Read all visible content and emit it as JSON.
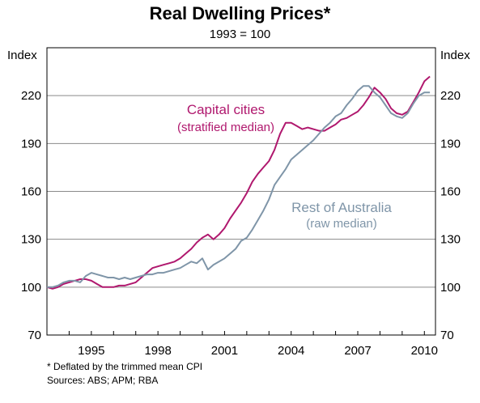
{
  "chart_data": {
    "type": "line",
    "title": "Real Dwelling Prices*",
    "subtitle": "1993 = 100",
    "ylabel_left": "Index",
    "ylabel_right": "Index",
    "xlim": [
      1993.0,
      2010.5
    ],
    "ylim": [
      70,
      250
    ],
    "yticks": [
      70,
      100,
      130,
      160,
      190,
      220
    ],
    "xticks": [
      1995,
      1998,
      2001,
      2004,
      2007,
      2010
    ],
    "grid": true,
    "series": [
      {
        "name": "Capital cities",
        "sublabel": "(stratified median)",
        "color": "#b0186e",
        "points": [
          [
            1993.0,
            100
          ],
          [
            1993.25,
            99
          ],
          [
            1993.5,
            100
          ],
          [
            1993.75,
            102
          ],
          [
            1994.0,
            103
          ],
          [
            1994.25,
            104
          ],
          [
            1994.5,
            105
          ],
          [
            1994.75,
            105
          ],
          [
            1995.0,
            104
          ],
          [
            1995.25,
            102
          ],
          [
            1995.5,
            100
          ],
          [
            1995.75,
            100
          ],
          [
            1996.0,
            100
          ],
          [
            1996.25,
            101
          ],
          [
            1996.5,
            101
          ],
          [
            1996.75,
            102
          ],
          [
            1997.0,
            103
          ],
          [
            1997.25,
            106
          ],
          [
            1997.5,
            109
          ],
          [
            1997.75,
            112
          ],
          [
            1998.0,
            113
          ],
          [
            1998.25,
            114
          ],
          [
            1998.5,
            115
          ],
          [
            1998.75,
            116
          ],
          [
            1999.0,
            118
          ],
          [
            1999.25,
            121
          ],
          [
            1999.5,
            124
          ],
          [
            1999.75,
            128
          ],
          [
            2000.0,
            131
          ],
          [
            2000.25,
            133
          ],
          [
            2000.5,
            130
          ],
          [
            2000.75,
            133
          ],
          [
            2001.0,
            137
          ],
          [
            2001.25,
            143
          ],
          [
            2001.5,
            148
          ],
          [
            2001.75,
            153
          ],
          [
            2002.0,
            159
          ],
          [
            2002.25,
            166
          ],
          [
            2002.5,
            171
          ],
          [
            2002.75,
            175
          ],
          [
            2003.0,
            179
          ],
          [
            2003.25,
            186
          ],
          [
            2003.5,
            196
          ],
          [
            2003.75,
            203
          ],
          [
            2004.0,
            203
          ],
          [
            2004.25,
            201
          ],
          [
            2004.5,
            199
          ],
          [
            2004.75,
            200
          ],
          [
            2005.0,
            199
          ],
          [
            2005.25,
            198
          ],
          [
            2005.5,
            198
          ],
          [
            2005.75,
            200
          ],
          [
            2006.0,
            202
          ],
          [
            2006.25,
            205
          ],
          [
            2006.5,
            206
          ],
          [
            2006.75,
            208
          ],
          [
            2007.0,
            210
          ],
          [
            2007.25,
            214
          ],
          [
            2007.5,
            219
          ],
          [
            2007.75,
            225
          ],
          [
            2008.0,
            222
          ],
          [
            2008.25,
            218
          ],
          [
            2008.5,
            212
          ],
          [
            2008.75,
            209
          ],
          [
            2009.0,
            208
          ],
          [
            2009.25,
            210
          ],
          [
            2009.5,
            216
          ],
          [
            2009.75,
            222
          ],
          [
            2010.0,
            229
          ],
          [
            2010.25,
            232
          ]
        ]
      },
      {
        "name": "Rest of Australia",
        "sublabel": "(raw median)",
        "color": "#7f95a8",
        "points": [
          [
            1993.0,
            100
          ],
          [
            1993.25,
            100
          ],
          [
            1993.5,
            101
          ],
          [
            1993.75,
            103
          ],
          [
            1994.0,
            104
          ],
          [
            1994.25,
            104
          ],
          [
            1994.5,
            103
          ],
          [
            1994.75,
            107
          ],
          [
            1995.0,
            109
          ],
          [
            1995.25,
            108
          ],
          [
            1995.5,
            107
          ],
          [
            1995.75,
            106
          ],
          [
            1996.0,
            106
          ],
          [
            1996.25,
            105
          ],
          [
            1996.5,
            106
          ],
          [
            1996.75,
            105
          ],
          [
            1997.0,
            106
          ],
          [
            1997.25,
            107
          ],
          [
            1997.5,
            108
          ],
          [
            1997.75,
            108
          ],
          [
            1998.0,
            109
          ],
          [
            1998.25,
            109
          ],
          [
            1998.5,
            110
          ],
          [
            1998.75,
            111
          ],
          [
            1999.0,
            112
          ],
          [
            1999.25,
            114
          ],
          [
            1999.5,
            116
          ],
          [
            1999.75,
            115
          ],
          [
            2000.0,
            118
          ],
          [
            2000.25,
            111
          ],
          [
            2000.5,
            114
          ],
          [
            2000.75,
            116
          ],
          [
            2001.0,
            118
          ],
          [
            2001.25,
            121
          ],
          [
            2001.5,
            124
          ],
          [
            2001.75,
            129
          ],
          [
            2002.0,
            131
          ],
          [
            2002.25,
            136
          ],
          [
            2002.5,
            142
          ],
          [
            2002.75,
            148
          ],
          [
            2003.0,
            155
          ],
          [
            2003.25,
            164
          ],
          [
            2003.5,
            169
          ],
          [
            2003.75,
            174
          ],
          [
            2004.0,
            180
          ],
          [
            2004.25,
            183
          ],
          [
            2004.5,
            186
          ],
          [
            2004.75,
            189
          ],
          [
            2005.0,
            192
          ],
          [
            2005.25,
            196
          ],
          [
            2005.5,
            200
          ],
          [
            2005.75,
            203
          ],
          [
            2006.0,
            207
          ],
          [
            2006.25,
            209
          ],
          [
            2006.5,
            214
          ],
          [
            2006.75,
            218
          ],
          [
            2007.0,
            223
          ],
          [
            2007.25,
            226
          ],
          [
            2007.5,
            226
          ],
          [
            2007.75,
            222
          ],
          [
            2008.0,
            219
          ],
          [
            2008.25,
            214
          ],
          [
            2008.5,
            209
          ],
          [
            2008.75,
            207
          ],
          [
            2009.0,
            206
          ],
          [
            2009.25,
            209
          ],
          [
            2009.5,
            215
          ],
          [
            2009.75,
            220
          ],
          [
            2010.0,
            222
          ],
          [
            2010.25,
            222
          ]
        ]
      }
    ]
  },
  "footnote": "*   Deflated by the trimmed mean CPI",
  "sources": "Sources: ABS; APM; RBA"
}
